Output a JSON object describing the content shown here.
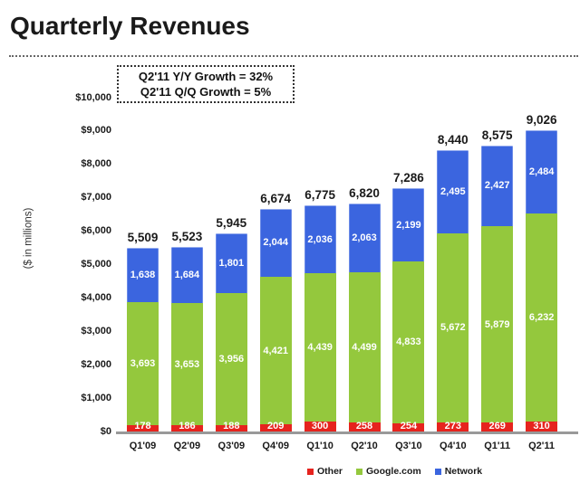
{
  "page": {
    "title": "Quarterly Revenues"
  },
  "annotation": {
    "line1": "Q2'11 Y/Y Growth = 32%",
    "line2": "Q2'11 Q/Q Growth = 5%"
  },
  "chart_data": {
    "type": "bar",
    "stacked": true,
    "title": "Quarterly Revenues",
    "ylabel": "($ in millions)",
    "ylim": [
      0,
      10000
    ],
    "ytick_interval": 1000,
    "yticks": [
      {
        "value": 0,
        "label": "$0"
      },
      {
        "value": 1000,
        "label": "$1,000"
      },
      {
        "value": 2000,
        "label": "$2,000"
      },
      {
        "value": 3000,
        "label": "$3,000"
      },
      {
        "value": 4000,
        "label": "$4,000"
      },
      {
        "value": 5000,
        "label": "$5,000"
      },
      {
        "value": 6000,
        "label": "$6,000"
      },
      {
        "value": 7000,
        "label": "$7,000"
      },
      {
        "value": 8000,
        "label": "$8,000"
      },
      {
        "value": 9000,
        "label": "$9,000"
      },
      {
        "value": 10000,
        "label": "$10,000"
      }
    ],
    "categories": [
      "Q1'09",
      "Q2'09",
      "Q3'09",
      "Q4'09",
      "Q1'10",
      "Q2'10",
      "Q3'10",
      "Q4'10",
      "Q1'11",
      "Q2'11"
    ],
    "series": [
      {
        "name": "Other",
        "color": "#E6231E",
        "values": [
          178,
          186,
          188,
          209,
          300,
          258,
          254,
          273,
          269,
          310
        ]
      },
      {
        "name": "Google.com",
        "color": "#94C83D",
        "values": [
          3693,
          3653,
          3956,
          4421,
          4439,
          4499,
          4833,
          5672,
          5879,
          6232
        ]
      },
      {
        "name": "Network",
        "color": "#3B65DF",
        "values": [
          1638,
          1684,
          1801,
          2044,
          2036,
          2063,
          2199,
          2495,
          2427,
          2484
        ]
      }
    ],
    "totals": [
      5509,
      5523,
      5945,
      6674,
      6775,
      6820,
      7286,
      8440,
      8575,
      9026
    ],
    "grid": false,
    "legend_position": "bottom",
    "legend": [
      "Other",
      "Google.com",
      "Network"
    ],
    "baseline_color": "#999999"
  }
}
